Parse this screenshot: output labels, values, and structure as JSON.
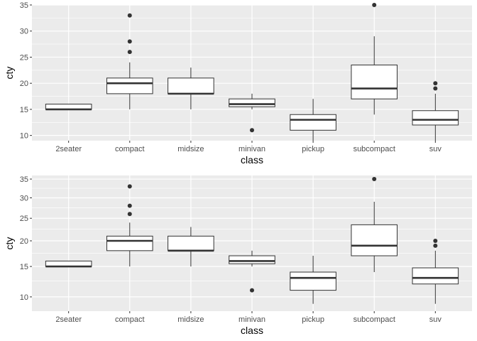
{
  "chart_data": [
    {
      "type": "boxplot",
      "xlabel": "class",
      "ylabel": "cty",
      "yscale": "linear",
      "ylim": [
        9,
        35
      ],
      "yticks": [
        10,
        15,
        20,
        25,
        30,
        35
      ],
      "ytick_labels": [
        "10",
        "15",
        "20",
        "25",
        "30",
        "35"
      ],
      "grid": true,
      "panel_background": "#ebebeb",
      "categories": [
        "2seater",
        "compact",
        "midsize",
        "minivan",
        "pickup",
        "subcompact",
        "suv"
      ],
      "boxes": [
        {
          "lower_whisker": 15,
          "q1": 15,
          "median": 15,
          "q3": 16,
          "upper_whisker": 16,
          "outliers": []
        },
        {
          "lower_whisker": 15,
          "q1": 18,
          "median": 20,
          "q3": 21,
          "upper_whisker": 24,
          "outliers": [
            26,
            28,
            33
          ]
        },
        {
          "lower_whisker": 15,
          "q1": 18,
          "median": 18,
          "q3": 21,
          "upper_whisker": 23,
          "outliers": []
        },
        {
          "lower_whisker": 15,
          "q1": 15.5,
          "median": 16,
          "q3": 17,
          "upper_whisker": 18,
          "outliers": [
            11
          ]
        },
        {
          "lower_whisker": 9,
          "q1": 11,
          "median": 13,
          "q3": 14,
          "upper_whisker": 17,
          "outliers": []
        },
        {
          "lower_whisker": 14,
          "q1": 17,
          "median": 19,
          "q3": 23.5,
          "upper_whisker": 29,
          "outliers": [
            35
          ]
        },
        {
          "lower_whisker": 9,
          "q1": 12,
          "median": 13,
          "q3": 14.75,
          "upper_whisker": 18,
          "outliers": [
            19,
            20
          ]
        }
      ]
    },
    {
      "type": "boxplot",
      "xlabel": "class",
      "ylabel": "cty",
      "yscale": "sqrt",
      "ylim": [
        8,
        36
      ],
      "yticks": [
        10,
        15,
        20,
        25,
        30,
        35
      ],
      "ytick_labels": [
        "10",
        "15",
        "20",
        "25",
        "30",
        "35"
      ],
      "grid": true,
      "panel_background": "#ebebeb",
      "categories": [
        "2seater",
        "compact",
        "midsize",
        "minivan",
        "pickup",
        "subcompact",
        "suv"
      ],
      "boxes": [
        {
          "lower_whisker": 15,
          "q1": 15,
          "median": 15,
          "q3": 16,
          "upper_whisker": 16,
          "outliers": []
        },
        {
          "lower_whisker": 15,
          "q1": 18,
          "median": 20,
          "q3": 21,
          "upper_whisker": 24,
          "outliers": [
            26,
            28,
            33
          ]
        },
        {
          "lower_whisker": 15,
          "q1": 18,
          "median": 18,
          "q3": 21,
          "upper_whisker": 23,
          "outliers": []
        },
        {
          "lower_whisker": 15,
          "q1": 15.5,
          "median": 16,
          "q3": 17,
          "upper_whisker": 18,
          "outliers": [
            11
          ]
        },
        {
          "lower_whisker": 9,
          "q1": 11,
          "median": 13,
          "q3": 14,
          "upper_whisker": 17,
          "outliers": []
        },
        {
          "lower_whisker": 14,
          "q1": 17,
          "median": 19,
          "q3": 23.5,
          "upper_whisker": 29,
          "outliers": [
            35
          ]
        },
        {
          "lower_whisker": 9,
          "q1": 12,
          "median": 13,
          "q3": 14.75,
          "upper_whisker": 18,
          "outliers": [
            19,
            20
          ]
        }
      ]
    }
  ]
}
